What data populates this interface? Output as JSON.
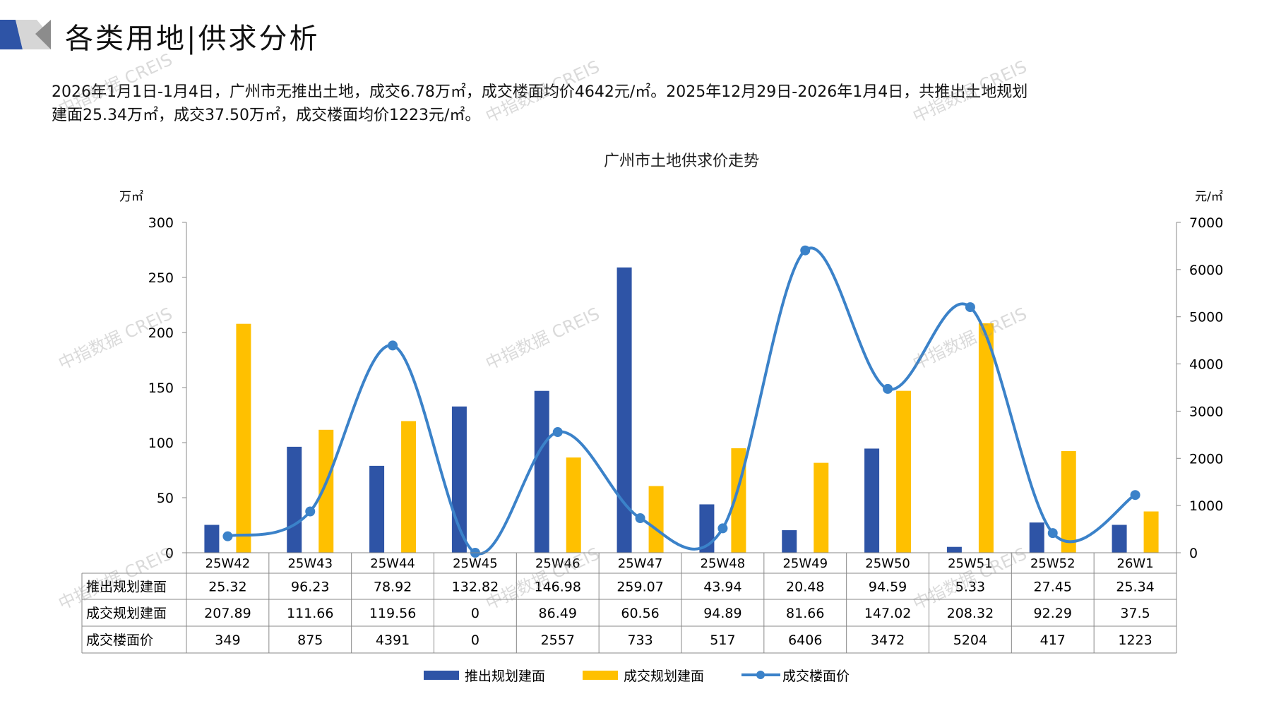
{
  "header": {
    "title": "各类用地|供求分析"
  },
  "summary": {
    "line1": "2026年1月1日-1月4日，广州市无推出土地，成交6.78万㎡，成交楼面均价4642元/㎡。2025年12月29日-2026年1月4日，共推出土地规划",
    "line2": "建面25.34万㎡，成交37.50万㎡，成交楼面均价1223元/㎡。"
  },
  "watermark": "中指数据 CREIS",
  "chart_data": {
    "type": "bar",
    "title": "广州市土地供求价走势",
    "ylabel_left": "万㎡",
    "ylabel_right": "元/㎡",
    "ylim_left": [
      0,
      300
    ],
    "yticks_left": [
      0,
      50,
      100,
      150,
      200,
      250,
      300
    ],
    "ylim_right": [
      0,
      7000
    ],
    "yticks_right": [
      0,
      1000,
      2000,
      3000,
      4000,
      5000,
      6000,
      7000
    ],
    "categories": [
      "25W42",
      "25W43",
      "25W44",
      "25W45",
      "25W46",
      "25W47",
      "25W48",
      "25W49",
      "25W50",
      "25W51",
      "25W52",
      "26W1"
    ],
    "series": [
      {
        "name": "推出规划建面",
        "type": "bar",
        "axis": "left",
        "color": "#2E54A6",
        "values": [
          25.32,
          96.23,
          78.92,
          132.82,
          146.98,
          259.07,
          43.94,
          20.48,
          94.59,
          5.33,
          27.45,
          25.34
        ]
      },
      {
        "name": "成交规划建面",
        "type": "bar",
        "axis": "left",
        "color": "#FFC000",
        "values": [
          207.89,
          111.66,
          119.56,
          0,
          86.49,
          60.56,
          94.89,
          81.66,
          147.02,
          208.32,
          92.29,
          37.5
        ]
      },
      {
        "name": "成交楼面价",
        "type": "line",
        "axis": "right",
        "color": "#3B82C9",
        "values": [
          349,
          875,
          4391,
          0,
          2557,
          733,
          517,
          6406,
          3472,
          5204,
          417,
          1223
        ]
      }
    ],
    "data_table": {
      "rows": [
        {
          "label": "推出规划建面",
          "values": [
            "25.32",
            "96.23",
            "78.92",
            "132.82",
            "146.98",
            "259.07",
            "43.94",
            "20.48",
            "94.59",
            "5.33",
            "27.45",
            "25.34"
          ]
        },
        {
          "label": "成交规划建面",
          "values": [
            "207.89",
            "111.66",
            "119.56",
            "0",
            "86.49",
            "60.56",
            "94.89",
            "81.66",
            "147.02",
            "208.32",
            "92.29",
            "37.5"
          ]
        },
        {
          "label": "成交楼面价",
          "values": [
            "349",
            "875",
            "4391",
            "0",
            "2557",
            "733",
            "517",
            "6406",
            "3472",
            "5204",
            "417",
            "1223"
          ]
        }
      ]
    },
    "legend_position": "bottom",
    "grid": false
  }
}
